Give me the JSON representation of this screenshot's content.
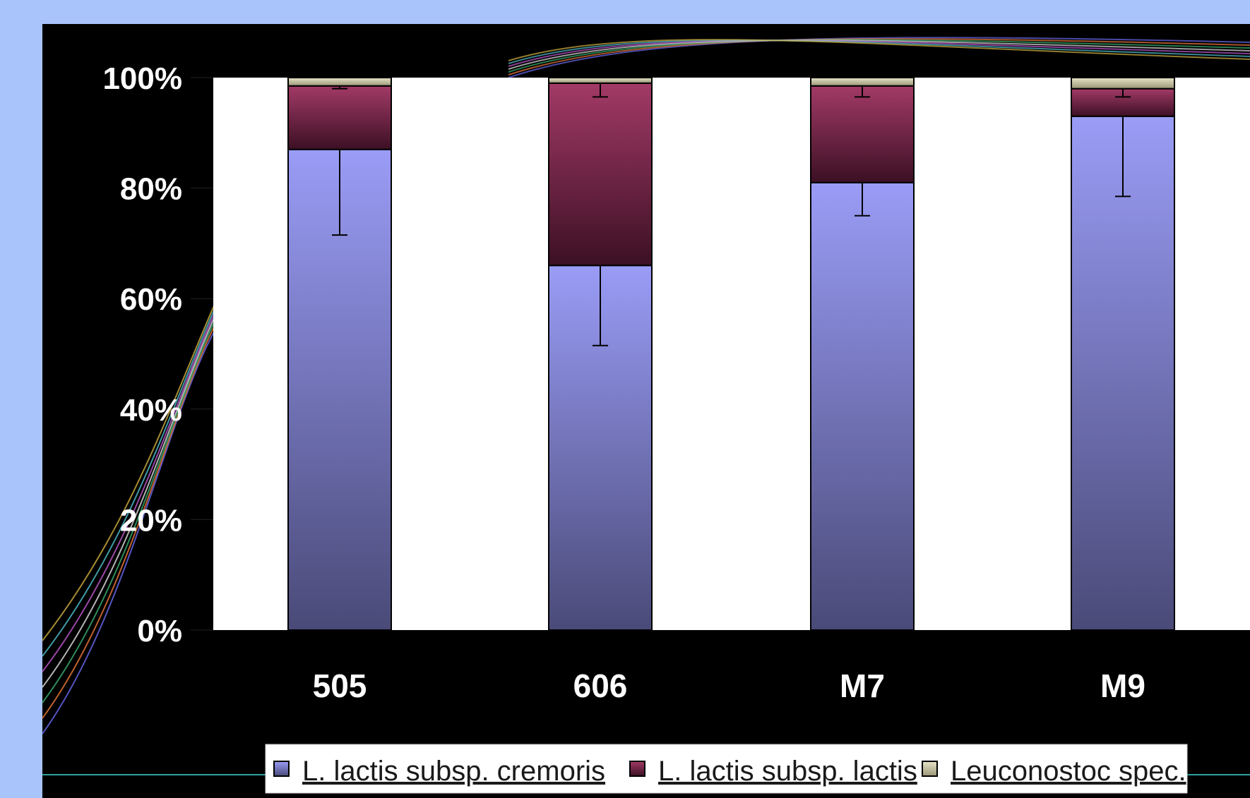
{
  "chart_data": {
    "type": "bar",
    "stacked": true,
    "categories": [
      "505",
      "606",
      "M7",
      "M9"
    ],
    "yticks": [
      "0%",
      "20%",
      "40%",
      "60%",
      "80%",
      "100%"
    ],
    "ylim": [
      0,
      100
    ],
    "legend_position": "bottom",
    "series": [
      {
        "name": "L. lactis subsp. cremoris",
        "color": "#9a9cf6",
        "color_dark": "#4a4a78",
        "values": [
          87,
          66,
          81,
          93
        ],
        "error_low": [
          15.5,
          14.5,
          6,
          14.5
        ]
      },
      {
        "name": "L. lactis subsp. lactis",
        "color": "#a23a66",
        "color_dark": "#3c1024",
        "values": [
          11.5,
          33,
          17.5,
          5
        ],
        "error_low": [
          0.5,
          2.5,
          2,
          1.5
        ]
      },
      {
        "name": "Leuconostoc spec.",
        "color": "#e8e4c8",
        "color_dark": "#9a9676",
        "values": [
          1.5,
          1,
          1.5,
          2
        ]
      }
    ]
  }
}
